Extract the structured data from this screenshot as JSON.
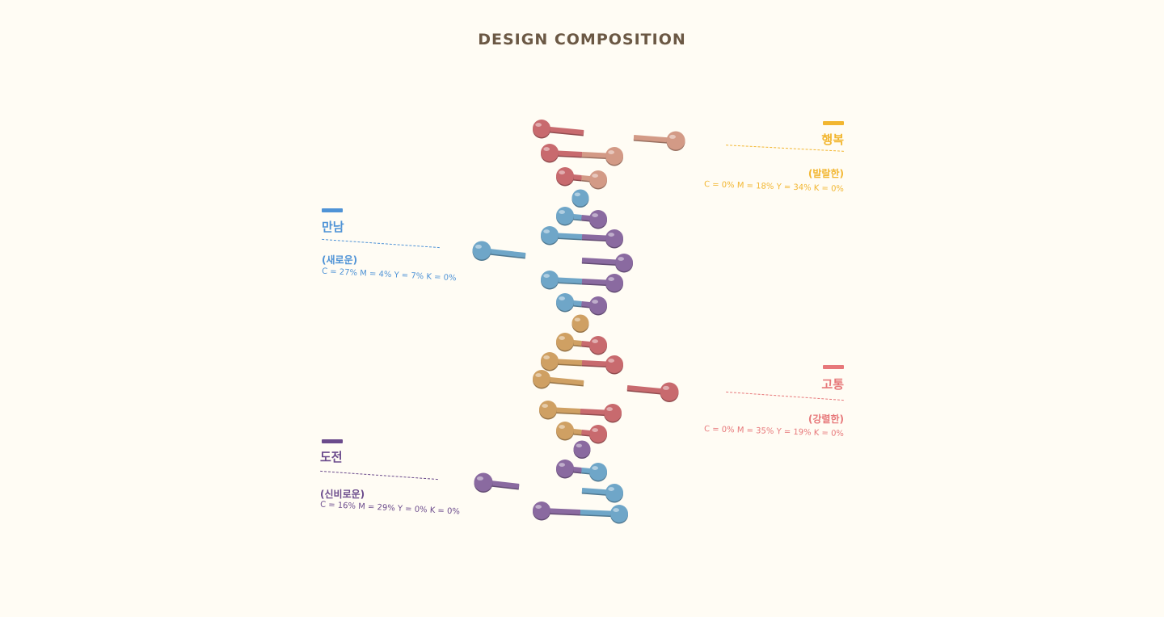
{
  "title": "DESIGN COMPOSITION",
  "colors": {
    "red": "#c86a6e",
    "peach": "#d39a86",
    "blue": "#6fa6c8",
    "purple": "#8a6aa0",
    "gold": "#cfa063",
    "yellow_label": "#f2b630",
    "blue_label": "#4f93d6",
    "red_label": "#e7787a",
    "purple_label": "#6b4b8c"
  },
  "labels": {
    "happiness": {
      "name": "행복",
      "sub": "(발랄한)",
      "cmyk": "C = 0% M = 18% Y = 34% K = 0%",
      "color": "#f2b630"
    },
    "meeting": {
      "name": "만남",
      "sub": "(새로운)",
      "cmyk": "C = 27% M = 4% Y = 7% K = 0%",
      "color": "#4f93d6"
    },
    "pain": {
      "name": "고통",
      "sub": "(강렬한)",
      "cmyk": "C = 0% M = 35% Y = 19% K = 0%",
      "color": "#e7787a"
    },
    "challenge": {
      "name": "도전",
      "sub": "(신비로운)",
      "cmyk": "C = 16% M = 29% Y = 0% K = 0%",
      "color": "#6b4b8c"
    }
  },
  "rungs": [
    {
      "left": "red",
      "right": "red-stub"
    },
    {
      "left": "peach-detached",
      "right": "peach"
    },
    {
      "left": "red",
      "right": "peach"
    },
    {
      "left": "red",
      "right": "peach"
    },
    {
      "left": "blue",
      "right": "none"
    },
    {
      "left": "blue",
      "right": "purple"
    },
    {
      "left": "blue-detached",
      "right": "none"
    },
    {
      "left": "blue",
      "right": "purple"
    },
    {
      "left": "purple-stub",
      "right": "purple"
    },
    {
      "left": "blue",
      "right": "purple"
    },
    {
      "left": "blue",
      "right": "purple"
    },
    {
      "left": "gold",
      "right": "none"
    },
    {
      "left": "gold",
      "right": "red"
    },
    {
      "left": "gold",
      "right": "red"
    },
    {
      "left": "gold",
      "right": "gold-stub"
    },
    {
      "left": "red-detached",
      "right": "red"
    },
    {
      "left": "gold",
      "right": "red"
    },
    {
      "left": "gold",
      "right": "red"
    },
    {
      "left": "purple",
      "right": "none"
    },
    {
      "left": "purple",
      "right": "blue"
    },
    {
      "left": "purple-detached",
      "right": "none"
    },
    {
      "left": "blue-stub",
      "right": "blue"
    },
    {
      "left": "purple",
      "right": "blue"
    }
  ]
}
